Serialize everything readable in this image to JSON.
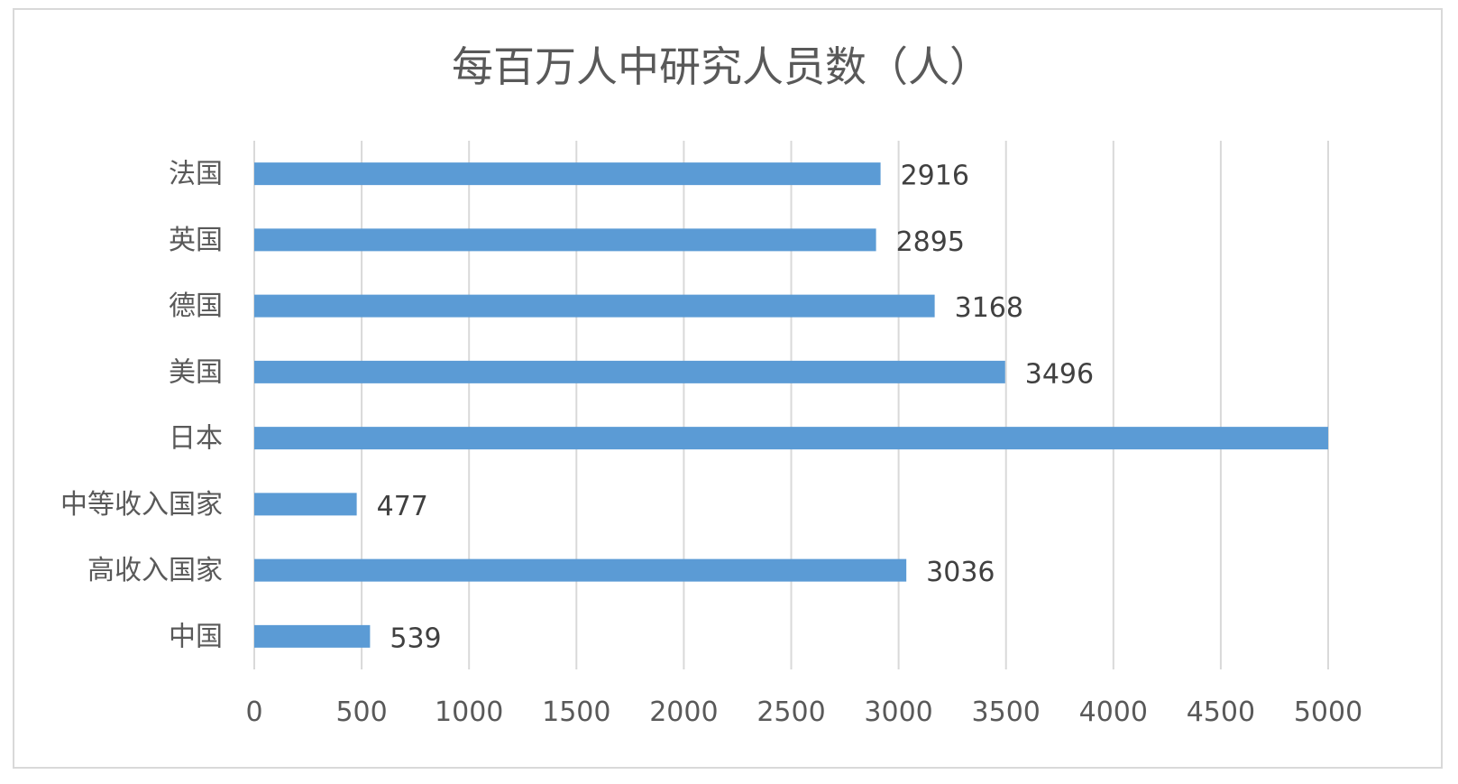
{
  "chart_data": {
    "type": "bar",
    "orientation": "horizontal",
    "title": "每百万人中研究人员数（人）",
    "xlabel": "",
    "ylabel": "",
    "categories": [
      "法国",
      "英国",
      "德国",
      "美国",
      "日本",
      "中等收入国家",
      "高收入国家",
      "中国"
    ],
    "values": [
      2916,
      2895,
      3168,
      3496,
      5000,
      477,
      3036,
      539
    ],
    "data_labels": [
      "2916",
      "2895",
      "3168",
      "3496",
      "",
      "477",
      "3036",
      "539"
    ],
    "xlim": [
      0,
      5000
    ],
    "xticks": [
      "0",
      "500",
      "1000",
      "1500",
      "2000",
      "2500",
      "3000",
      "3500",
      "4000",
      "4500",
      "5000"
    ],
    "grid": "vertical",
    "legend": "none",
    "colors": {
      "bar": "#5b9bd5",
      "grid": "#d9d9d9",
      "text": "#595959",
      "border": "#d9d9d9"
    }
  }
}
